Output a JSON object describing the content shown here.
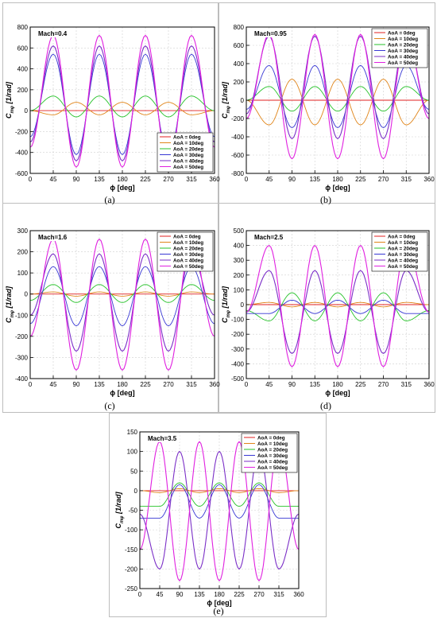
{
  "series_names": [
    "AoA = 0deg",
    "AoA = 10deg",
    "AoA = 20deg",
    "AoA = 30deg",
    "AoA = 40deg",
    "AoA = 50deg"
  ],
  "series_colors": [
    "#e02020",
    "#e0851a",
    "#27c22a",
    "#3838d4",
    "#7b2fc7",
    "#e020e0"
  ],
  "chart_data": [
    {
      "type": "line",
      "panel_label": "(a)",
      "mach_label": "Mach=0.4",
      "xlabel": "ϕ [deg]",
      "ylabel_main": "C",
      "ylabel_sub": "mφ",
      "ylabel_unit": "[1/rad]",
      "xlim": [
        0,
        360
      ],
      "ylim": [
        -600,
        800
      ],
      "xticks": [
        0,
        45,
        90,
        135,
        180,
        225,
        270,
        315,
        360
      ],
      "yticks": [
        -600,
        -400,
        -200,
        0,
        200,
        400,
        600,
        800
      ],
      "legend_position": "bottom-right",
      "legend_entries": [
        "AoA = 0deg",
        "AoA = 10deg",
        "AoA = 20deg",
        "AoA = 30deg",
        "AoA = 40deg",
        "AoA = 50deg"
      ],
      "series": [
        {
          "name": "AoA = 0deg",
          "values_desc": "constant",
          "x": [
            0,
            360
          ],
          "y": [
            0,
            0
          ]
        },
        {
          "name": "AoA = 10deg",
          "x": [
            0,
            45,
            90,
            135,
            180,
            225,
            270,
            315,
            360
          ],
          "y": [
            0,
            -40,
            80,
            -40,
            80,
            -40,
            80,
            -40,
            0
          ]
        },
        {
          "name": "AoA = 20deg",
          "x": [
            0,
            45,
            90,
            135,
            180,
            225,
            270,
            315,
            360
          ],
          "y": [
            0,
            140,
            -60,
            140,
            -60,
            140,
            -60,
            140,
            0
          ]
        },
        {
          "name": "AoA = 30deg",
          "x": [
            0,
            45,
            90,
            135,
            180,
            225,
            270,
            315,
            360
          ],
          "y": [
            -250,
            540,
            -420,
            540,
            -420,
            540,
            -420,
            540,
            -250
          ]
        },
        {
          "name": "AoA = 40deg",
          "x": [
            0,
            45,
            90,
            135,
            180,
            225,
            270,
            315,
            360
          ],
          "y": [
            -300,
            620,
            -480,
            620,
            -480,
            620,
            -480,
            620,
            -300
          ]
        },
        {
          "name": "AoA = 50deg",
          "x": [
            0,
            45,
            90,
            135,
            180,
            225,
            270,
            315,
            360
          ],
          "y": [
            -350,
            720,
            -540,
            720,
            -540,
            720,
            -540,
            720,
            -350
          ]
        }
      ]
    },
    {
      "type": "line",
      "panel_label": "(b)",
      "mach_label": "Mach=0.95",
      "xlabel": "ϕ [deg]",
      "ylabel_main": "C",
      "ylabel_sub": "mφ",
      "ylabel_unit": "[1/rad]",
      "xlim": [
        0,
        360
      ],
      "ylim": [
        -800,
        800
      ],
      "xticks": [
        0,
        45,
        90,
        135,
        180,
        225,
        270,
        315,
        360
      ],
      "yticks": [
        -800,
        -600,
        -400,
        -200,
        0,
        200,
        400,
        600,
        800
      ],
      "legend_position": "top-right",
      "legend_entries": [
        "AoA = 0deg",
        "AoA = 10deg",
        "AoA = 20deg",
        "AoA = 30deg",
        "AoA = 40deg",
        "AoA = 50deg"
      ],
      "series": [
        {
          "name": "AoA = 0deg",
          "x": [
            0,
            360
          ],
          "y": [
            0,
            0
          ]
        },
        {
          "name": "AoA = 10deg",
          "x": [
            0,
            45,
            90,
            135,
            180,
            225,
            270,
            315,
            360
          ],
          "y": [
            0,
            -270,
            230,
            -270,
            230,
            -270,
            230,
            -270,
            0
          ]
        },
        {
          "name": "AoA = 20deg",
          "x": [
            0,
            45,
            90,
            135,
            180,
            225,
            270,
            315,
            360
          ],
          "y": [
            0,
            150,
            -120,
            150,
            -120,
            150,
            -120,
            150,
            0
          ]
        },
        {
          "name": "AoA = 30deg",
          "x": [
            0,
            45,
            90,
            135,
            180,
            225,
            270,
            315,
            360
          ],
          "y": [
            -100,
            380,
            -300,
            380,
            -300,
            380,
            -300,
            380,
            -100
          ]
        },
        {
          "name": "AoA = 40deg",
          "x": [
            0,
            45,
            90,
            135,
            180,
            225,
            270,
            315,
            360
          ],
          "y": [
            -150,
            700,
            -420,
            700,
            -420,
            700,
            -420,
            700,
            -150
          ]
        },
        {
          "name": "AoA = 50deg",
          "x": [
            0,
            45,
            90,
            135,
            180,
            225,
            270,
            315,
            360
          ],
          "y": [
            -200,
            720,
            -640,
            720,
            -640,
            720,
            -640,
            720,
            -200
          ]
        }
      ]
    },
    {
      "type": "line",
      "panel_label": "(c)",
      "mach_label": "Mach=1.6",
      "xlabel": "ϕ [deg]",
      "ylabel_main": "C",
      "ylabel_sub": "mφ",
      "ylabel_unit": "[1/rad]",
      "xlim": [
        0,
        360
      ],
      "ylim": [
        -400,
        300
      ],
      "xticks": [
        0,
        45,
        90,
        135,
        180,
        225,
        270,
        315,
        360
      ],
      "yticks": [
        -400,
        -300,
        -200,
        -100,
        0,
        100,
        200,
        300
      ],
      "legend_position": "top-right",
      "legend_entries": [
        "AoA = 0deg",
        "AoA = 10deg",
        "AoA = 20deg",
        "AoA = 30deg",
        "AoA = 40deg",
        "AoA = 50deg"
      ],
      "series": [
        {
          "name": "AoA = 0deg",
          "x": [
            0,
            360
          ],
          "y": [
            0,
            0
          ]
        },
        {
          "name": "AoA = 10deg",
          "x": [
            0,
            45,
            90,
            135,
            180,
            225,
            270,
            315,
            360
          ],
          "y": [
            0,
            10,
            -10,
            10,
            -10,
            10,
            -10,
            10,
            0
          ]
        },
        {
          "name": "AoA = 20deg",
          "x": [
            0,
            45,
            90,
            135,
            180,
            225,
            270,
            315,
            360
          ],
          "y": [
            -30,
            45,
            -40,
            45,
            -40,
            45,
            -40,
            45,
            -30
          ]
        },
        {
          "name": "AoA = 30deg",
          "x": [
            0,
            45,
            90,
            135,
            180,
            225,
            270,
            315,
            360
          ],
          "y": [
            -140,
            130,
            -150,
            130,
            -150,
            130,
            -150,
            130,
            -140
          ]
        },
        {
          "name": "AoA = 40deg",
          "x": [
            0,
            45,
            90,
            135,
            180,
            225,
            270,
            315,
            360
          ],
          "y": [
            -100,
            190,
            -270,
            190,
            -270,
            190,
            -270,
            190,
            -100
          ]
        },
        {
          "name": "AoA = 50deg",
          "x": [
            0,
            45,
            90,
            135,
            180,
            225,
            270,
            315,
            360
          ],
          "y": [
            -200,
            260,
            -360,
            260,
            -360,
            260,
            -360,
            260,
            -200
          ]
        }
      ]
    },
    {
      "type": "line",
      "panel_label": "(d)",
      "mach_label": "Mach=2.5",
      "xlabel": "ϕ [deg]",
      "ylabel_main": "C",
      "ylabel_sub": "mφ",
      "ylabel_unit": "[1/rad]",
      "xlim": [
        0,
        360
      ],
      "ylim": [
        -500,
        500
      ],
      "xticks": [
        0,
        45,
        90,
        135,
        180,
        225,
        270,
        315,
        360
      ],
      "yticks": [
        -500,
        -400,
        -300,
        -200,
        -100,
        0,
        100,
        200,
        300,
        400,
        500
      ],
      "legend_position": "top-right",
      "legend_entries": [
        "AoA = 0deg",
        "AoA = 10deg",
        "AoA = 20deg",
        "AoA = 30deg",
        "AoA = 40deg",
        "AoA = 50deg"
      ],
      "series": [
        {
          "name": "AoA = 0deg",
          "x": [
            0,
            360
          ],
          "y": [
            0,
            0
          ]
        },
        {
          "name": "AoA = 10deg",
          "x": [
            0,
            45,
            90,
            135,
            180,
            225,
            270,
            315,
            360
          ],
          "y": [
            0,
            15,
            -15,
            15,
            -15,
            15,
            -15,
            15,
            0
          ]
        },
        {
          "name": "AoA = 20deg",
          "x": [
            0,
            45,
            90,
            135,
            180,
            225,
            270,
            315,
            360
          ],
          "y": [
            -40,
            -110,
            80,
            -110,
            80,
            -110,
            80,
            -110,
            -40
          ]
        },
        {
          "name": "AoA = 30deg",
          "x": [
            0,
            45,
            90,
            135,
            180,
            225,
            270,
            315,
            360
          ],
          "y": [
            -60,
            -60,
            30,
            -60,
            30,
            -60,
            30,
            -60,
            -60
          ]
        },
        {
          "name": "AoA = 40deg",
          "x": [
            0,
            45,
            90,
            135,
            180,
            225,
            270,
            315,
            360
          ],
          "y": [
            -50,
            230,
            -330,
            230,
            -330,
            230,
            -330,
            230,
            -50
          ]
        },
        {
          "name": "AoA = 50deg",
          "x": [
            0,
            45,
            90,
            135,
            180,
            225,
            270,
            315,
            360
          ],
          "y": [
            -50,
            400,
            -420,
            400,
            -420,
            400,
            -420,
            400,
            -50
          ]
        }
      ]
    },
    {
      "type": "line",
      "panel_label": "(e)",
      "mach_label": "Mach=3.5",
      "xlabel": "ϕ [deg]",
      "ylabel_main": "C",
      "ylabel_sub": "mφ",
      "ylabel_unit": "[1/rad]",
      "xlim": [
        0,
        360
      ],
      "ylim": [
        -250,
        150
      ],
      "xticks": [
        0,
        45,
        90,
        135,
        180,
        225,
        270,
        315,
        360
      ],
      "yticks": [
        -250,
        -200,
        -150,
        -100,
        -50,
        0,
        50,
        100,
        150
      ],
      "legend_position": "top-right",
      "legend_entries": [
        "AoA = 0deg",
        "AoA = 10deg",
        "AoA = 20deg",
        "AoA = 30deg",
        "AoA = 40deg",
        "AoA = 50deg"
      ],
      "series": [
        {
          "name": "AoA = 0deg",
          "x": [
            0,
            360
          ],
          "y": [
            0,
            0
          ]
        },
        {
          "name": "AoA = 10deg",
          "x": [
            0,
            45,
            90,
            135,
            180,
            225,
            270,
            315,
            360
          ],
          "y": [
            0,
            -5,
            5,
            -5,
            5,
            -5,
            5,
            -5,
            0
          ]
        },
        {
          "name": "AoA = 20deg",
          "x": [
            0,
            45,
            90,
            135,
            180,
            225,
            270,
            315,
            360
          ],
          "y": [
            -40,
            -40,
            20,
            -40,
            20,
            -40,
            20,
            -40,
            -40
          ]
        },
        {
          "name": "AoA = 30deg",
          "x": [
            0,
            45,
            90,
            135,
            180,
            225,
            270,
            315,
            360
          ],
          "y": [
            -70,
            -70,
            15,
            -70,
            15,
            -70,
            15,
            -70,
            -70
          ]
        },
        {
          "name": "AoA = 40deg",
          "x": [
            0,
            45,
            90,
            135,
            180,
            225,
            270,
            315,
            360
          ],
          "y": [
            -60,
            -200,
            100,
            -200,
            100,
            -200,
            100,
            -200,
            -60
          ]
        },
        {
          "name": "AoA = 50deg",
          "x": [
            0,
            45,
            90,
            135,
            180,
            225,
            270,
            315,
            360
          ],
          "y": [
            -150,
            125,
            -230,
            125,
            -230,
            125,
            -230,
            125,
            -150
          ]
        }
      ]
    }
  ]
}
